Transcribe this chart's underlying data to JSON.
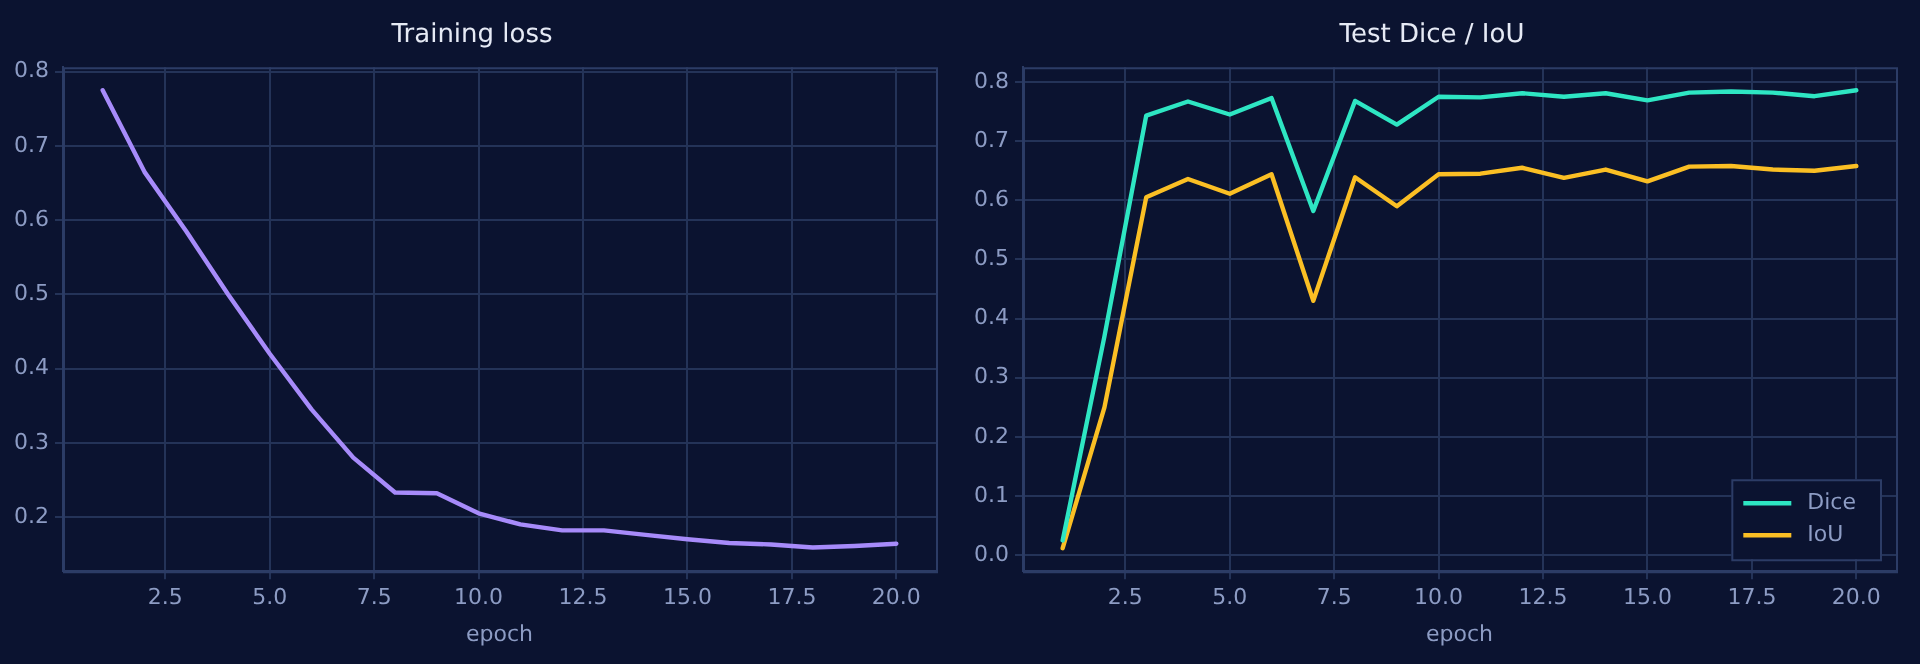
{
  "chart_data": [
    {
      "type": "line",
      "title": "Training loss",
      "xlabel": "epoch",
      "x": [
        1,
        2,
        3,
        4,
        5,
        6,
        7,
        8,
        9,
        10,
        11,
        12,
        13,
        14,
        15,
        16,
        17,
        18,
        19,
        20
      ],
      "series": [
        {
          "color": "#a78bfa",
          "values": [
            0.775,
            0.665,
            0.585,
            0.5,
            0.42,
            0.345,
            0.28,
            0.233,
            0.232,
            0.205,
            0.19,
            0.182,
            0.182,
            0.176,
            0.17,
            0.165,
            0.163,
            0.159,
            0.161,
            0.164
          ]
        }
      ],
      "xlim": [
        0.05,
        20.95
      ],
      "ylim": [
        0.127,
        0.806
      ],
      "xticks": [
        2.5,
        {
          "value": 5,
          "label": "5.0"
        },
        7.5,
        {
          "value": 10,
          "label": "10.0"
        },
        12.5,
        {
          "value": 15,
          "label": "15.0"
        },
        17.5,
        {
          "value": 20,
          "label": "20.0"
        }
      ],
      "yticks": [
        0.2,
        0.3,
        0.4,
        0.5,
        0.6,
        0.7,
        0.8
      ],
      "grid": true,
      "legend": false,
      "marker": "none",
      "line_style": "solid"
    },
    {
      "type": "line",
      "title": "Test Dice / IoU",
      "xlabel": "epoch",
      "x": [
        1,
        2,
        3,
        4,
        5,
        6,
        7,
        8,
        9,
        10,
        11,
        12,
        13,
        14,
        15,
        16,
        17,
        18,
        19,
        20
      ],
      "series": [
        {
          "name": "Dice",
          "color": "#2ee6c3",
          "values": [
            0.025,
            0.37,
            0.743,
            0.767,
            0.745,
            0.773,
            0.582,
            0.768,
            0.728,
            0.775,
            0.774,
            0.781,
            0.775,
            0.781,
            0.769,
            0.782,
            0.784,
            0.782,
            0.776,
            0.786
          ]
        },
        {
          "name": "IoU",
          "color": "#fbbf24",
          "values": [
            0.012,
            0.25,
            0.605,
            0.636,
            0.611,
            0.644,
            0.43,
            0.639,
            0.59,
            0.644,
            0.645,
            0.655,
            0.638,
            0.652,
            0.632,
            0.657,
            0.658,
            0.652,
            0.65,
            0.658
          ]
        }
      ],
      "xlim": [
        0.05,
        20.95
      ],
      "ylim": [
        -0.027,
        0.825
      ],
      "xticks": [
        2.5,
        {
          "value": 5,
          "label": "5.0"
        },
        7.5,
        {
          "value": 10,
          "label": "10.0"
        },
        12.5,
        {
          "value": 15,
          "label": "15.0"
        },
        17.5,
        {
          "value": 20,
          "label": "20.0"
        }
      ],
      "yticks": [
        {
          "value": 0,
          "label": "0.0"
        },
        0.1,
        0.2,
        0.3,
        0.4,
        0.5,
        0.6,
        0.7,
        0.8
      ],
      "grid": true,
      "legend": "bottom right",
      "marker": "none",
      "line_style": "solid"
    }
  ]
}
